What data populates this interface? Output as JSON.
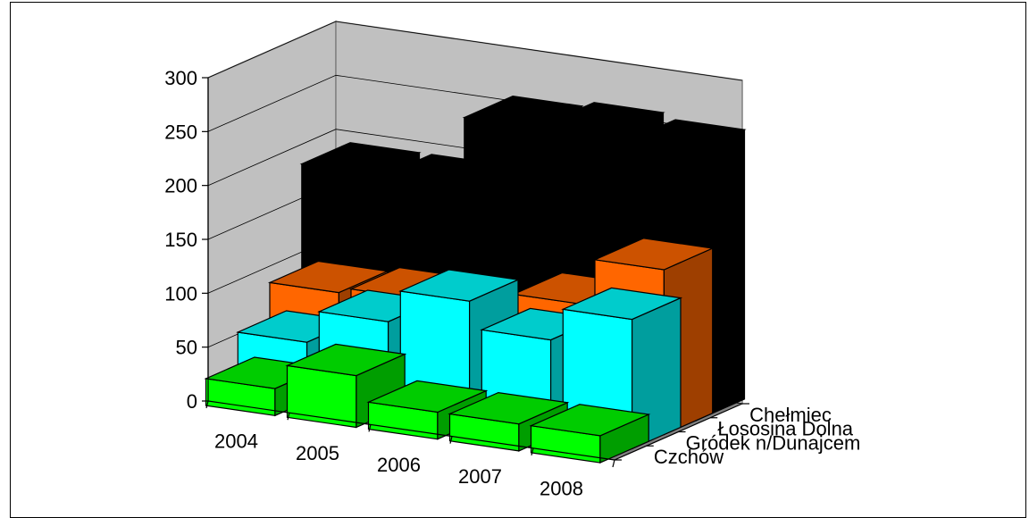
{
  "chart_data": {
    "type": "bar",
    "title": "",
    "xlabel": "",
    "ylabel": "",
    "ylim": [
      0,
      300
    ],
    "yticks": [
      0,
      50,
      100,
      150,
      200,
      250,
      300
    ],
    "grid": true,
    "categories": [
      "2004",
      "2005",
      "2006",
      "2007",
      "2008"
    ],
    "series": [
      {
        "name": "Czchów",
        "color": "#00ff00",
        "values": [
          25,
          48,
          25,
          25,
          25
        ]
      },
      {
        "name": "Gródek n/Dunajcem",
        "color": "#00ffff",
        "values": [
          55,
          85,
          115,
          90,
          120
        ]
      },
      {
        "name": "Łososina Dolna",
        "color": "#ff6600",
        "values": [
          88,
          93,
          80,
          110,
          153
        ]
      },
      {
        "name": "Chełmiec",
        "color": "#000000",
        "values": [
          185,
          185,
          250,
          255,
          250
        ]
      }
    ],
    "wall_color": "#c0c0c0",
    "floor_color": "#808080"
  }
}
